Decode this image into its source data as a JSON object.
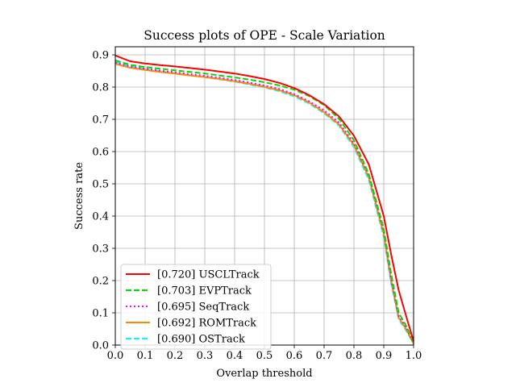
{
  "chart_data": {
    "type": "line",
    "title": "Success plots of OPE - Scale Variation",
    "xlabel": "Overlap threshold",
    "ylabel": "Success rate",
    "xlim": [
      0.0,
      1.0
    ],
    "ylim": [
      0.0,
      0.925
    ],
    "xticks": [
      "0.0",
      "0.1",
      "0.2",
      "0.3",
      "0.4",
      "0.5",
      "0.6",
      "0.7",
      "0.8",
      "0.9",
      "1.0"
    ],
    "yticks": [
      "0.0",
      "0.1",
      "0.2",
      "0.3",
      "0.4",
      "0.5",
      "0.6",
      "0.7",
      "0.8",
      "0.9"
    ],
    "grid": true,
    "legend_position": "lower-left",
    "x": [
      0.0,
      0.05,
      0.1,
      0.15,
      0.2,
      0.25,
      0.3,
      0.35,
      0.4,
      0.45,
      0.5,
      0.55,
      0.6,
      0.65,
      0.7,
      0.75,
      0.8,
      0.85,
      0.9,
      0.925,
      0.95,
      0.975,
      1.0
    ],
    "series": [
      {
        "name": "[0.720] USCLTrack",
        "color": "#ff0000",
        "dash": "solid",
        "values": [
          0.898,
          0.88,
          0.873,
          0.868,
          0.864,
          0.859,
          0.854,
          0.848,
          0.842,
          0.834,
          0.825,
          0.813,
          0.797,
          0.775,
          0.747,
          0.709,
          0.649,
          0.56,
          0.4,
          0.28,
          0.17,
          0.09,
          0.012
        ]
      },
      {
        "name": "[0.703] EVPTrack",
        "color": "#00dd00",
        "dash": "dashed",
        "values": [
          0.883,
          0.869,
          0.862,
          0.857,
          0.852,
          0.847,
          0.842,
          0.836,
          0.83,
          0.823,
          0.815,
          0.805,
          0.792,
          0.772,
          0.744,
          0.702,
          0.635,
          0.53,
          0.36,
          0.22,
          0.1,
          0.06,
          0.008
        ]
      },
      {
        "name": "[0.695] SeqTrack",
        "color": "#ff00ff",
        "dash": "dotted",
        "values": [
          0.876,
          0.864,
          0.857,
          0.851,
          0.846,
          0.84,
          0.835,
          0.829,
          0.822,
          0.814,
          0.805,
          0.794,
          0.778,
          0.756,
          0.728,
          0.69,
          0.625,
          0.525,
          0.35,
          0.2,
          0.09,
          0.055,
          0.006
        ]
      },
      {
        "name": "[0.692] ROMTrack",
        "color": "#ff8800",
        "dash": "solid",
        "values": [
          0.872,
          0.86,
          0.853,
          0.847,
          0.842,
          0.836,
          0.831,
          0.825,
          0.818,
          0.81,
          0.801,
          0.79,
          0.775,
          0.752,
          0.722,
          0.684,
          0.62,
          0.52,
          0.345,
          0.2,
          0.085,
          0.05,
          0.005
        ]
      },
      {
        "name": "[0.690] OSTrack",
        "color": "#00ffff",
        "dash": "dashed",
        "values": [
          0.878,
          0.864,
          0.856,
          0.849,
          0.843,
          0.837,
          0.831,
          0.824,
          0.817,
          0.808,
          0.799,
          0.787,
          0.771,
          0.749,
          0.719,
          0.68,
          0.614,
          0.512,
          0.335,
          0.19,
          0.08,
          0.045,
          0.004
        ]
      }
    ]
  }
}
